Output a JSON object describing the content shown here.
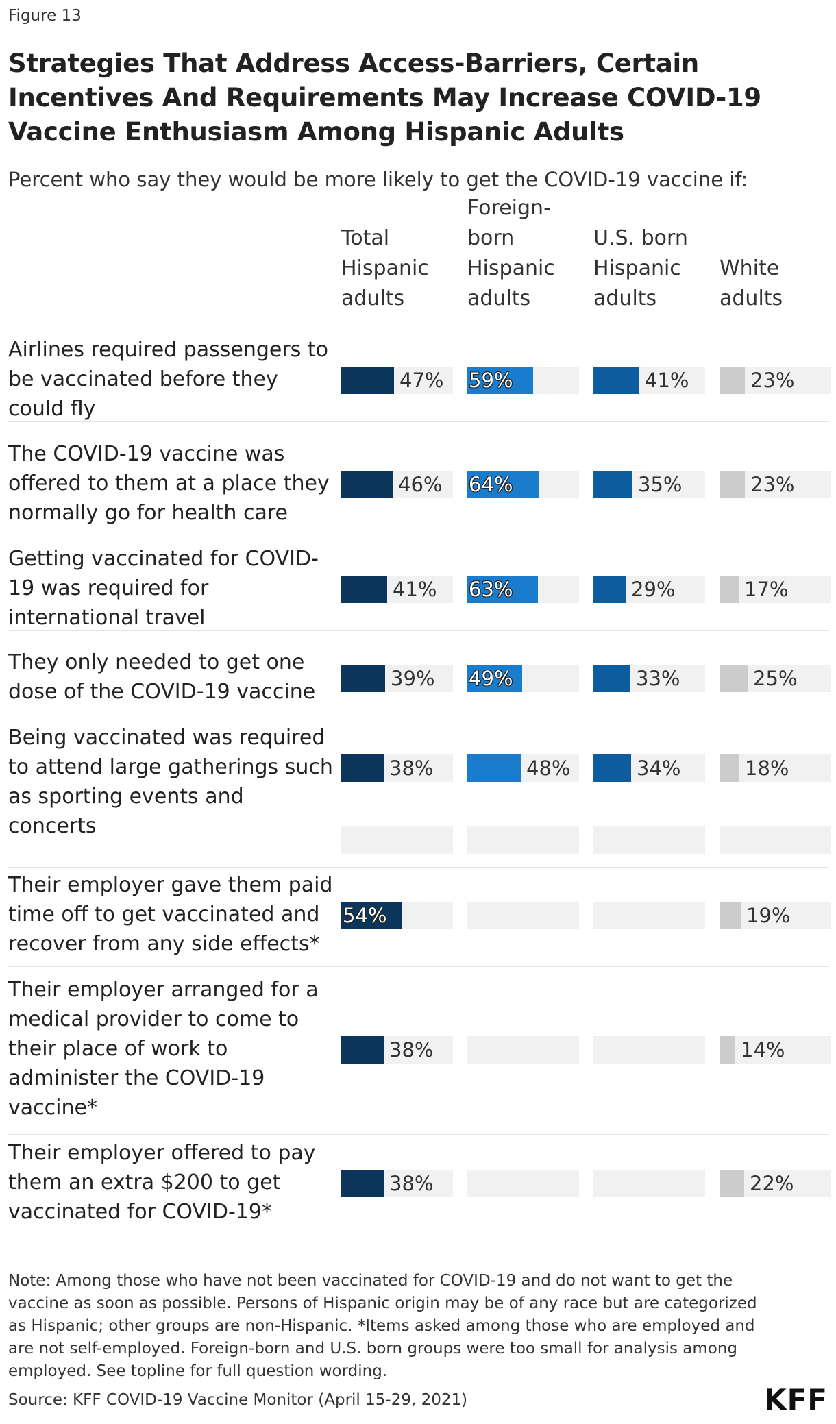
{
  "figure_label": "Figure 13",
  "title": "Strategies That Address Access-Barriers, Certain Incentives And Requirements May Increase COVID-19 Vaccine Enthusiasm Among Hispanic Adults",
  "subtitle": "Percent who say they would be more likely to get the COVID-19 vaccine if:",
  "note": "Note: Among those who have not been vaccinated for COVID-19 and do not want to get the vaccine as soon as possible. Persons of Hispanic origin may be of any race but are categorized as Hispanic; other groups are non-Hispanic. *Items asked among those who are employed and are not self-employed. Foreign-born and U.S. born groups were too small for analysis among employed. See topline for full question wording.",
  "source": "Source: KFF COVID-19 Vaccine Monitor (April 15-29, 2021)",
  "logo": "KFF",
  "colors": {
    "total_hispanic": "#0b355b",
    "foreign_born": "#1a7ccc",
    "us_born": "#0c5c9e",
    "white": "#cccccc",
    "track": "#f1f1f1"
  },
  "chart_data": {
    "type": "bar",
    "orientation": "horizontal",
    "xlim": [
      0,
      100
    ],
    "unit": "%",
    "series": [
      {
        "name": "Total\nHispanic\nadults",
        "values": [
          47,
          46,
          41,
          39,
          38,
          null,
          54,
          38,
          38
        ]
      },
      {
        "name": "Foreign-\nborn\nHispanic\nadults",
        "values": [
          59,
          64,
          63,
          49,
          48,
          null,
          null,
          null,
          null
        ]
      },
      {
        "name": "U.S. born\nHispanic\nadults",
        "values": [
          41,
          35,
          29,
          33,
          34,
          null,
          null,
          null,
          null
        ]
      },
      {
        "name": "White\nadults",
        "values": [
          23,
          23,
          17,
          25,
          18,
          null,
          19,
          14,
          22
        ]
      }
    ],
    "categories": [
      "Airlines required passengers to\nbe vaccinated before they\ncould fly",
      "The COVID-19 vaccine was\noffered to them at a place they\nnormally go for health care",
      "Getting vaccinated for COVID-\n19 was required for\ninternational travel",
      "They only needed to get one\ndose of the COVID-19 vaccine",
      "Being vaccinated was required\nto attend large gatherings such\nas sporting events and concerts",
      "",
      "Their employer gave them paid\ntime off to get vaccinated and\nrecover from any side effects*",
      "Their employer arranged for a\nmedical provider to come to\ntheir place of work to\nadminister the COVID-19\nvaccine*",
      "Their employer offered to pay\nthem an extra $200 to get\nvaccinated for COVID-19*"
    ],
    "value_labels": [
      [
        "47%",
        "59%",
        "41%",
        "23%"
      ],
      [
        "46%",
        "64%",
        "35%",
        "23%"
      ],
      [
        "41%",
        "63%",
        "29%",
        "17%"
      ],
      [
        "39%",
        "49%",
        "33%",
        "25%"
      ],
      [
        "38%",
        "48%",
        "34%",
        "18%"
      ],
      [
        "",
        "",
        "",
        ""
      ],
      [
        "54%",
        "",
        "",
        "19%"
      ],
      [
        "38%",
        "",
        "",
        "14%"
      ],
      [
        "38%",
        "",
        "",
        "22%"
      ]
    ]
  }
}
